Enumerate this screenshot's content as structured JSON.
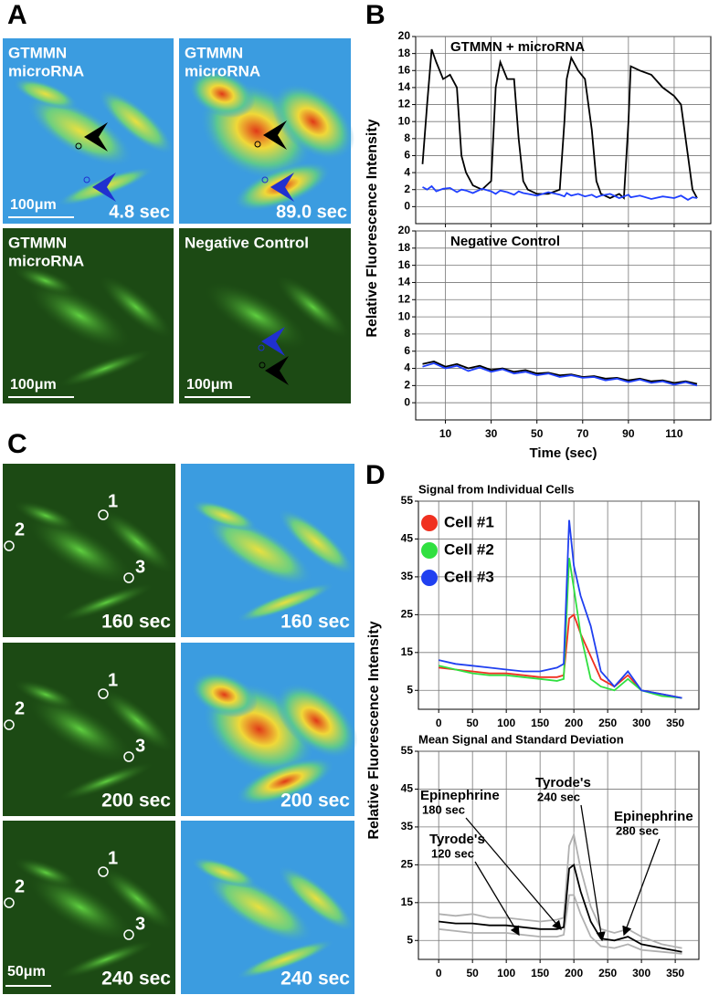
{
  "panel_labels": [
    "A",
    "B",
    "C",
    "D"
  ],
  "panel_a": {
    "images": [
      {
        "label_lines": [
          "GTMMN",
          "microRNA"
        ],
        "time": "4.8 sec",
        "scale": "100μm"
      },
      {
        "label_lines": [
          "GTMMN",
          "microRNA"
        ],
        "time": "89.0 sec"
      },
      {
        "label_lines": [
          "GTMMN",
          "microRNA"
        ],
        "scale": "100μm"
      },
      {
        "label_lines": [
          "Negative Control"
        ],
        "scale": "100μm"
      }
    ]
  },
  "panel_c": {
    "times": [
      "160 sec",
      "200 sec",
      "240 sec"
    ],
    "cells": [
      "1",
      "2",
      "3"
    ],
    "scale": "50μm"
  },
  "chart_data": [
    {
      "type": "line",
      "annotation": "GTMMN + microRNA",
      "y_label": "Relative Fluorescence Intensity",
      "x": [
        0,
        2,
        4,
        6,
        9,
        12,
        15,
        17,
        19,
        22,
        26,
        30,
        32,
        34,
        37,
        40,
        42,
        44,
        46,
        50,
        55,
        60,
        62,
        63,
        65,
        68,
        71,
        74,
        76,
        78,
        82,
        86,
        88,
        90,
        91,
        95,
        100,
        105,
        110,
        113,
        116,
        118,
        120
      ],
      "series": [
        {
          "color": "#000000",
          "values": [
            5,
            12,
            18.5,
            17,
            15,
            15.5,
            14,
            6,
            4,
            2.5,
            2,
            3,
            14,
            17,
            15,
            15,
            8,
            3,
            2,
            1.5,
            1.5,
            2,
            10,
            15,
            17.5,
            16,
            15,
            9,
            3,
            1.5,
            1,
            1.5,
            1,
            10,
            16.5,
            16,
            15.5,
            14,
            13,
            12,
            6,
            2,
            1
          ]
        },
        {
          "color": "#1f3fff",
          "values": [
            2.3,
            2.0,
            2.4,
            1.8,
            2.1,
            2.2,
            1.7,
            2.0,
            1.9,
            1.6,
            2.1,
            1.8,
            1.5,
            1.9,
            1.7,
            1.4,
            1.8,
            1.6,
            1.5,
            1.3,
            1.7,
            1.4,
            1.2,
            1.6,
            1.3,
            1.5,
            1.2,
            1.4,
            1.1,
            1.3,
            1.5,
            1.0,
            1.2,
            1.4,
            1.1,
            1.3,
            0.9,
            1.2,
            1.0,
            1.3,
            0.8,
            1.1,
            1.0
          ]
        }
      ],
      "xlim": [
        -3,
        126
      ],
      "ylim": [
        -2,
        20
      ],
      "xticks": [
        10,
        30,
        50,
        70,
        90,
        110
      ],
      "yticks": [
        0,
        2,
        4,
        6,
        8,
        10,
        12,
        14,
        16,
        18,
        20
      ],
      "grid": true,
      "x_tick_labels": false
    },
    {
      "type": "line",
      "annotation": "Negative Control",
      "x_label": "Time (sec)",
      "x": [
        0,
        5,
        10,
        15,
        20,
        25,
        30,
        35,
        40,
        45,
        50,
        55,
        60,
        65,
        70,
        75,
        80,
        85,
        90,
        95,
        100,
        105,
        110,
        115,
        120
      ],
      "series": [
        {
          "color": "#000000",
          "values": [
            4.5,
            4.8,
            4.2,
            4.5,
            4.0,
            4.3,
            3.8,
            4.0,
            3.6,
            3.8,
            3.4,
            3.5,
            3.2,
            3.3,
            3.0,
            3.1,
            2.8,
            2.9,
            2.6,
            2.8,
            2.5,
            2.6,
            2.3,
            2.5,
            2.2
          ]
        },
        {
          "color": "#1f3fff",
          "values": [
            4.2,
            4.6,
            4.0,
            4.3,
            3.7,
            4.1,
            3.6,
            3.9,
            3.4,
            3.6,
            3.2,
            3.4,
            3.0,
            3.2,
            2.9,
            3.0,
            2.6,
            2.8,
            2.4,
            2.7,
            2.3,
            2.5,
            2.1,
            2.4,
            2.0
          ]
        }
      ],
      "xlim": [
        -3,
        126
      ],
      "ylim": [
        -2,
        20
      ],
      "xticks": [
        10,
        30,
        50,
        70,
        90,
        110
      ],
      "yticks": [
        0,
        2,
        4,
        6,
        8,
        10,
        12,
        14,
        16,
        18,
        20
      ],
      "grid": true
    },
    {
      "type": "line",
      "title": "Signal from Individual Cells",
      "y_label": "Relative Fluorescence Intensity",
      "legend": "upper left",
      "x": [
        0,
        25,
        50,
        75,
        100,
        125,
        150,
        175,
        185,
        193,
        200,
        210,
        225,
        240,
        260,
        280,
        300,
        330,
        360
      ],
      "series": [
        {
          "name": "Cell #1",
          "color": "#f03020",
          "values": [
            11,
            10.5,
            10,
            9.5,
            9.5,
            9,
            8.5,
            8.5,
            9,
            24,
            25,
            20,
            14,
            8,
            6,
            9,
            5,
            4,
            3
          ]
        },
        {
          "name": "Cell #2",
          "color": "#30e040",
          "values": [
            11.5,
            10.5,
            9.5,
            9,
            9,
            8.5,
            8,
            7.5,
            8,
            40,
            32,
            20,
            8,
            6,
            5,
            8,
            5,
            3.5,
            3
          ]
        },
        {
          "name": "Cell #3",
          "color": "#2040f0",
          "values": [
            13,
            12,
            11.5,
            11,
            10.5,
            10,
            10,
            11,
            12,
            50,
            38,
            30,
            22,
            10,
            6,
            10,
            5,
            4,
            3
          ]
        }
      ],
      "xlim": [
        -30,
        385
      ],
      "ylim": [
        0,
        55
      ],
      "xticks": [
        0,
        50,
        100,
        150,
        200,
        250,
        300,
        350
      ],
      "yticks": [
        5,
        15,
        25,
        35,
        45,
        55
      ],
      "grid": true
    },
    {
      "type": "line",
      "title": "Mean Signal and Standard Deviation",
      "x": [
        0,
        25,
        50,
        75,
        100,
        125,
        150,
        175,
        185,
        193,
        200,
        210,
        225,
        240,
        260,
        280,
        300,
        330,
        360
      ],
      "series": [
        {
          "color": "#b0b0b0",
          "values": [
            12,
            11.5,
            12,
            11,
            11,
            10.5,
            10,
            10.5,
            11,
            30,
            33,
            24,
            14,
            8,
            7,
            8,
            6,
            4,
            3
          ]
        },
        {
          "color": "#b0b0b0",
          "values": [
            8,
            7.5,
            7,
            7,
            7,
            6.5,
            6,
            6,
            6.5,
            17,
            17,
            12,
            6,
            3.5,
            3,
            4,
            2.5,
            2,
            1.5
          ]
        },
        {
          "color": "#000000",
          "values": [
            10,
            9.5,
            9.5,
            9,
            9,
            8.5,
            8,
            8,
            8.5,
            24,
            25,
            18,
            10,
            5.5,
            5,
            6,
            4,
            3,
            2
          ]
        }
      ],
      "annotations": [
        {
          "lines": [
            "Epinephrine",
            "180 sec"
          ]
        },
        {
          "lines": [
            "Tyrode's",
            "120 sec"
          ]
        },
        {
          "lines": [
            "Tyrode's",
            "240 sec"
          ]
        },
        {
          "lines": [
            "Epinephrine",
            "280 sec"
          ]
        }
      ],
      "xlim": [
        -30,
        385
      ],
      "ylim": [
        0,
        55
      ],
      "xticks": [
        0,
        50,
        100,
        150,
        200,
        250,
        300,
        350
      ],
      "yticks": [
        5,
        15,
        25,
        35,
        45,
        55
      ],
      "grid": true
    }
  ]
}
